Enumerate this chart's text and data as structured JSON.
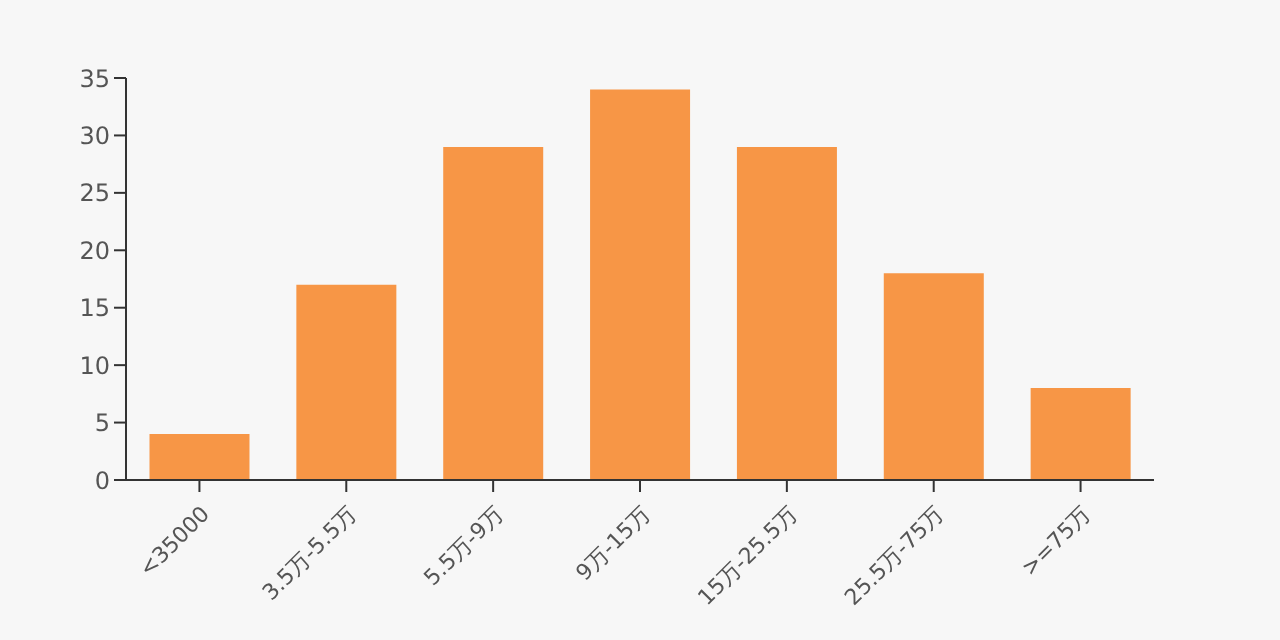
{
  "chart_data": {
    "type": "bar",
    "categories": [
      "<35000",
      "3.5万-5.5万",
      "5.5万-9万",
      "9万-15万",
      "15万-25.5万",
      "25.5万-75万",
      ">=75万"
    ],
    "values": [
      4,
      17,
      29,
      34,
      29,
      18,
      8
    ],
    "color": "#f79646",
    "ylim": [
      0,
      35
    ],
    "yticks": [
      0,
      5,
      10,
      15,
      20,
      25,
      30,
      35
    ],
    "grid": false
  }
}
